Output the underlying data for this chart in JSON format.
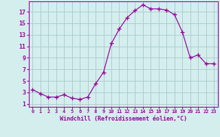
{
  "x": [
    0,
    1,
    2,
    3,
    4,
    5,
    6,
    7,
    8,
    9,
    10,
    11,
    12,
    13,
    14,
    15,
    16,
    17,
    18,
    19,
    20,
    21,
    22,
    23
  ],
  "y": [
    3.5,
    2.8,
    2.2,
    2.2,
    2.6,
    2.0,
    1.8,
    2.2,
    4.5,
    6.5,
    11.5,
    14.0,
    16.0,
    17.2,
    18.2,
    17.5,
    17.5,
    17.3,
    16.5,
    13.5,
    9.0,
    9.5,
    8.0,
    8.0
  ],
  "line_color": "#990099",
  "marker": "+",
  "marker_size": 4,
  "bg_color": "#d4eeee",
  "grid_color": "#aacccc",
  "xlabel": "Windchill (Refroidissement éolien,°C)",
  "xlabel_color": "#990099",
  "ylabel_ticks": [
    1,
    3,
    5,
    7,
    9,
    11,
    13,
    15,
    17
  ],
  "xtick_labels": [
    "0",
    "1",
    "2",
    "3",
    "4",
    "5",
    "6",
    "7",
    "8",
    "9",
    "10",
    "11",
    "12",
    "13",
    "14",
    "15",
    "16",
    "17",
    "18",
    "19",
    "20",
    "21",
    "22",
    "23"
  ],
  "ylim": [
    0.5,
    18.8
  ],
  "xlim": [
    -0.5,
    23.5
  ],
  "tick_color": "#990099",
  "spine_color": "#990099",
  "xlabel_fontsize": 6.0,
  "xtick_fontsize": 5.0,
  "ytick_fontsize": 6.0
}
